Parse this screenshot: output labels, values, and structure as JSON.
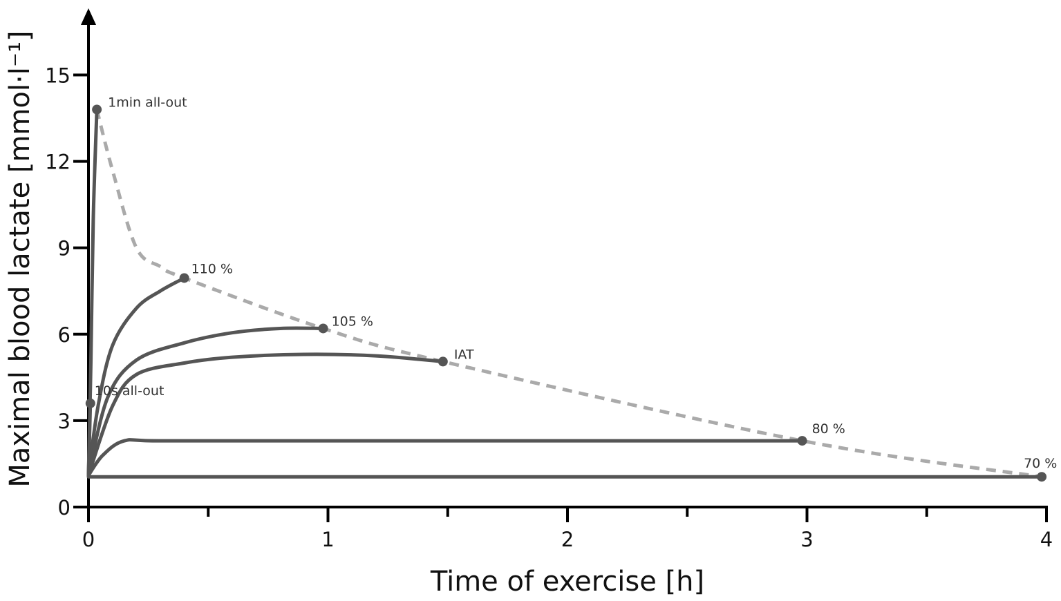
{
  "chart_data": {
    "type": "line",
    "xlabel": "Time of exercise [h]",
    "ylabel": "Maximal blood lactate [mmol·l⁻¹]",
    "xlim": [
      0,
      4
    ],
    "ylim": [
      0,
      17
    ],
    "xticks": [
      0,
      1,
      2,
      3,
      4
    ],
    "xminorticks": [
      0.5,
      1.5,
      2.5,
      3.5
    ],
    "yticks": [
      0,
      3,
      6,
      9,
      12,
      15
    ],
    "grid": false,
    "series": [
      {
        "name": "10s all-out",
        "points": [
          [
            0,
            1.1
          ],
          [
            0.008,
            3.6
          ]
        ]
      },
      {
        "name": "1min all-out",
        "points": [
          [
            0,
            1.1
          ],
          [
            0.01,
            5
          ],
          [
            0.02,
            10
          ],
          [
            0.035,
            13.8
          ]
        ]
      },
      {
        "name": "110 %",
        "points": [
          [
            0,
            1.1
          ],
          [
            0.04,
            3.5
          ],
          [
            0.1,
            5.6
          ],
          [
            0.2,
            6.9
          ],
          [
            0.3,
            7.5
          ],
          [
            0.4,
            7.95
          ]
        ]
      },
      {
        "name": "105 %",
        "points": [
          [
            0,
            1.1
          ],
          [
            0.08,
            3.8
          ],
          [
            0.2,
            5.1
          ],
          [
            0.4,
            5.7
          ],
          [
            0.6,
            6.05
          ],
          [
            0.8,
            6.2
          ],
          [
            0.98,
            6.2
          ]
        ]
      },
      {
        "name": "IAT",
        "points": [
          [
            0,
            1.1
          ],
          [
            0.1,
            3.5
          ],
          [
            0.2,
            4.6
          ],
          [
            0.4,
            5.0
          ],
          [
            0.6,
            5.2
          ],
          [
            0.9,
            5.3
          ],
          [
            1.2,
            5.25
          ],
          [
            1.48,
            5.05
          ]
        ]
      },
      {
        "name": "80 %",
        "points": [
          [
            0,
            1.1
          ],
          [
            0.06,
            1.8
          ],
          [
            0.15,
            2.3
          ],
          [
            0.3,
            2.3
          ],
          [
            1.0,
            2.3
          ],
          [
            2.0,
            2.3
          ],
          [
            2.98,
            2.3
          ]
        ]
      },
      {
        "name": "70 %",
        "points": [
          [
            0,
            1.05
          ],
          [
            1.0,
            1.05
          ],
          [
            2.0,
            1.05
          ],
          [
            3.0,
            1.05
          ],
          [
            3.98,
            1.05
          ]
        ]
      }
    ],
    "endpoints": [
      {
        "label": "10s all-out",
        "x": 0.008,
        "y": 3.6
      },
      {
        "label": "1min all-out",
        "x": 0.035,
        "y": 13.8
      },
      {
        "label": "110 %",
        "x": 0.4,
        "y": 7.95
      },
      {
        "label": "105 %",
        "x": 0.98,
        "y": 6.2
      },
      {
        "label": "IAT",
        "x": 1.48,
        "y": 5.05
      },
      {
        "label": "80 %",
        "x": 2.98,
        "y": 2.3
      },
      {
        "label": "70 %",
        "x": 3.98,
        "y": 1.05
      }
    ],
    "envelope": [
      [
        0.035,
        13.8
      ],
      [
        0.1,
        11.7
      ],
      [
        0.2,
        9.0
      ],
      [
        0.3,
        8.35
      ],
      [
        0.4,
        7.95
      ],
      [
        0.98,
        6.2
      ],
      [
        1.48,
        5.05
      ],
      [
        2.98,
        2.3
      ],
      [
        3.98,
        1.05
      ]
    ]
  }
}
